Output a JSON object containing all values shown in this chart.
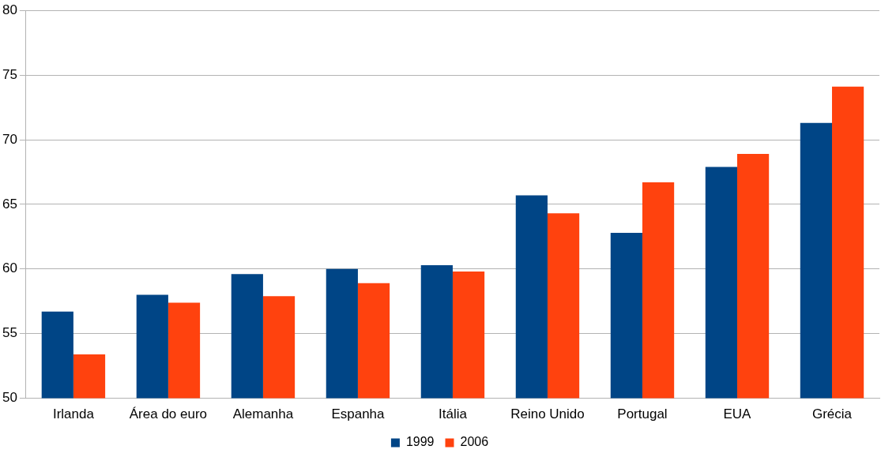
{
  "chart_data": {
    "type": "bar",
    "categories": [
      "Irlanda",
      "Área do euro",
      "Alemanha",
      "Espanha",
      "Itália",
      "Reino Unido",
      "Portugal",
      "EUA",
      "Grécia"
    ],
    "series": [
      {
        "name": "1999",
        "color": "#004586",
        "values": [
          56.7,
          58.0,
          59.6,
          60.0,
          60.3,
          65.7,
          62.8,
          67.9,
          71.3
        ]
      },
      {
        "name": "2006",
        "color": "#ff420e",
        "values": [
          53.4,
          57.4,
          57.9,
          58.9,
          59.8,
          64.3,
          66.7,
          68.9,
          74.1
        ]
      }
    ],
    "ylim": [
      50,
      80
    ],
    "yticks": [
      50,
      55,
      60,
      65,
      70,
      75,
      80
    ],
    "grid": "y",
    "legend": "bottom"
  }
}
